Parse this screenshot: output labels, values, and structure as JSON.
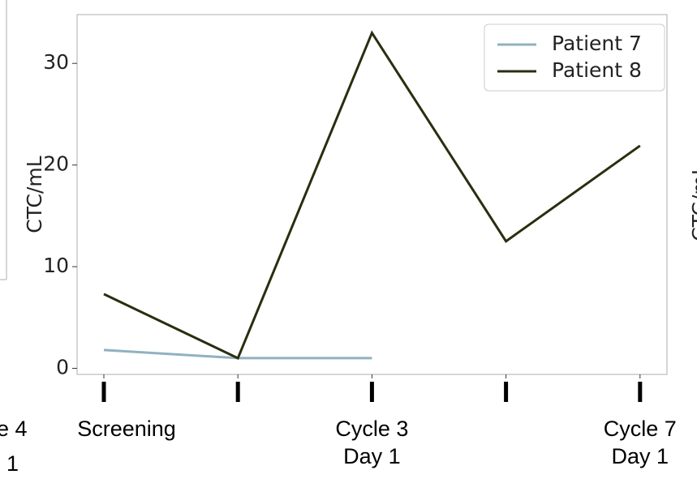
{
  "chart_data": {
    "type": "line",
    "y_label": "CTC/mL",
    "categories": [
      "Screening",
      null,
      "Cycle 3\nDay 1",
      null,
      "Cycle 7\nDay 1"
    ],
    "series": [
      {
        "name": "Patient 7",
        "color": "#91b1bf",
        "values": [
          1.8,
          1.0,
          1.0,
          null,
          null
        ]
      },
      {
        "name": "Patient 8",
        "color": "#2b2d0f",
        "values": [
          7.3,
          1.0,
          33.0,
          12.5,
          21.9
        ]
      }
    ],
    "ylim": [
      -0.6,
      34.8
    ],
    "yticks": [
      0,
      10,
      20,
      30
    ],
    "legend": "upper-right",
    "left_fragments": [
      "e 4",
      "1"
    ],
    "right_fragment": "CTC/mL"
  }
}
